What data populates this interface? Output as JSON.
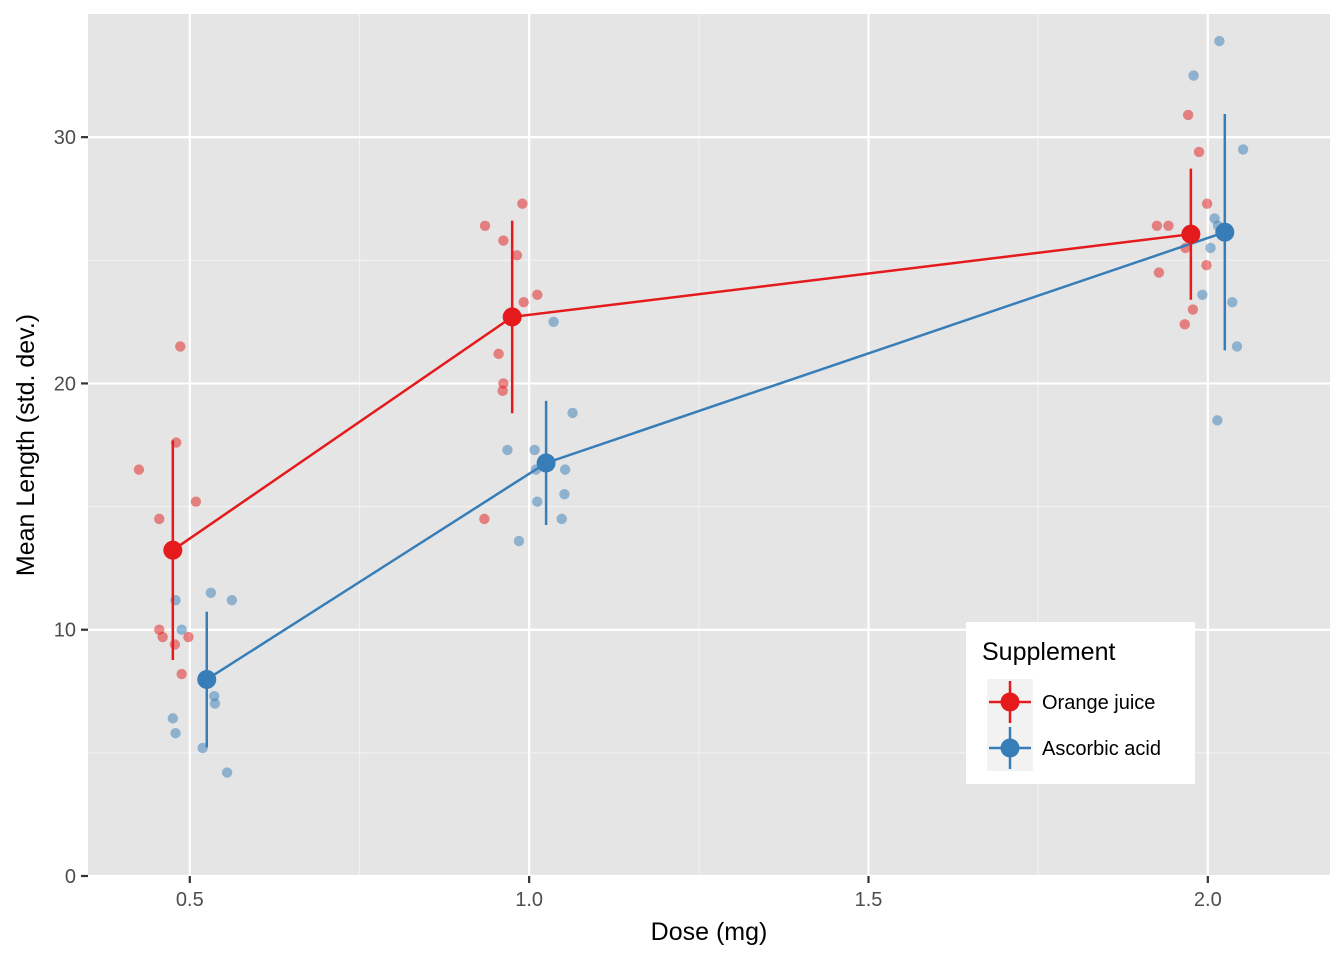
{
  "chart_data": {
    "type": "line",
    "xlabel": "Dose (mg)",
    "ylabel": "Mean Length (std. dev.)",
    "xlim": [
      0.35,
      2.18
    ],
    "ylim": [
      0,
      35
    ],
    "x_ticks": [
      0.5,
      1.0,
      1.5,
      2.0
    ],
    "x_tick_labels": [
      "0.5",
      "1.0",
      "1.5",
      "2.0"
    ],
    "y_ticks": [
      0,
      10,
      20,
      30
    ],
    "y_tick_labels": [
      "0",
      "10",
      "20",
      "30"
    ],
    "x_minor": [
      0.75,
      1.25,
      1.75
    ],
    "y_minor": [
      5,
      15,
      25
    ],
    "grid": true,
    "legend": {
      "title": "Supplement",
      "placement": "bottom-right",
      "entries": [
        "Orange juice",
        "Ascorbic acid"
      ]
    },
    "series": [
      {
        "name": "Orange juice",
        "color": "#E41A1C",
        "x": [
          0.5,
          1.0,
          2.0
        ],
        "dodge": -0.025,
        "mean": [
          13.23,
          22.7,
          26.06
        ],
        "sd": [
          4.46,
          3.91,
          2.66
        ],
        "raw": [
          [
            0.425,
            16.5
          ],
          [
            0.455,
            14.5
          ],
          [
            0.46,
            9.7
          ],
          [
            0.455,
            10.0
          ],
          [
            0.48,
            17.6
          ],
          [
            0.486,
            21.5
          ],
          [
            0.478,
            9.4
          ],
          [
            0.488,
            8.2
          ],
          [
            0.498,
            9.7
          ],
          [
            0.509,
            15.2
          ],
          [
            0.935,
            26.4
          ],
          [
            0.962,
            25.8
          ],
          [
            0.982,
            25.2
          ],
          [
            0.99,
            27.3
          ],
          [
            0.992,
            23.3
          ],
          [
            0.955,
            21.2
          ],
          [
            0.962,
            20.0
          ],
          [
            0.961,
            19.7
          ],
          [
            1.012,
            23.6
          ],
          [
            0.934,
            14.5
          ],
          [
            1.925,
            26.4
          ],
          [
            1.942,
            26.4
          ],
          [
            1.967,
            25.5
          ],
          [
            1.971,
            30.9
          ],
          [
            1.987,
            29.4
          ],
          [
            1.928,
            24.5
          ],
          [
            1.978,
            23.0
          ],
          [
            1.966,
            22.4
          ],
          [
            1.999,
            27.3
          ],
          [
            1.998,
            24.8
          ]
        ]
      },
      {
        "name": "Ascorbic acid",
        "color": "#377EB8",
        "x": [
          0.5,
          1.0,
          2.0
        ],
        "dodge": 0.025,
        "mean": [
          7.98,
          16.77,
          26.14
        ],
        "sd": [
          2.75,
          2.52,
          4.8
        ],
        "raw": [
          [
            0.479,
            11.2
          ],
          [
            0.531,
            11.5
          ],
          [
            0.562,
            11.2
          ],
          [
            0.488,
            10.0
          ],
          [
            0.536,
            7.3
          ],
          [
            0.537,
            7.0
          ],
          [
            0.475,
            6.4
          ],
          [
            0.479,
            5.8
          ],
          [
            0.519,
            5.2
          ],
          [
            0.555,
            4.2
          ],
          [
            1.036,
            22.5
          ],
          [
            1.064,
            18.8
          ],
          [
            0.968,
            17.3
          ],
          [
            1.008,
            17.3
          ],
          [
            1.053,
            16.5
          ],
          [
            1.052,
            15.5
          ],
          [
            1.012,
            15.2
          ],
          [
            1.048,
            14.5
          ],
          [
            0.985,
            13.6
          ],
          [
            1.01,
            16.5
          ],
          [
            2.017,
            33.9
          ],
          [
            1.979,
            32.5
          ],
          [
            2.052,
            29.5
          ],
          [
            2.01,
            26.7
          ],
          [
            2.004,
            25.5
          ],
          [
            2.036,
            23.3
          ],
          [
            1.992,
            23.6
          ],
          [
            2.043,
            21.5
          ],
          [
            2.014,
            18.5
          ],
          [
            2.015,
            26.4
          ]
        ]
      }
    ]
  }
}
